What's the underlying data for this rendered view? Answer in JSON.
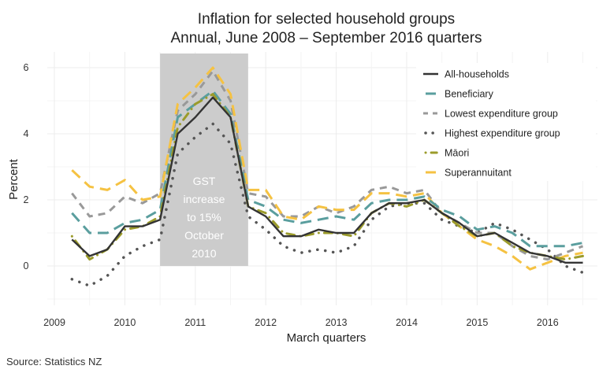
{
  "chart_data": {
    "type": "line",
    "title": "Inflation for selected household groups",
    "subtitle": "Annual, June 2008 – September 2016 quarters",
    "xlabel": "March quarters",
    "ylabel": "Percent",
    "source": "Source: Statistics NZ",
    "xlim": [
      2008.98,
      2016.95
    ],
    "ylim": [
      -1.2,
      6.4
    ],
    "x_ticks": [
      2009,
      2010,
      2011,
      2012,
      2013,
      2014,
      2015,
      2016
    ],
    "x_tick_labels": [
      "2009",
      "2010",
      "2011",
      "2012",
      "2013",
      "2014",
      "2015",
      "2016"
    ],
    "y_ticks": [
      0,
      2,
      4,
      6
    ],
    "y_tick_labels": [
      "0",
      "2",
      "4",
      "6"
    ],
    "grid": true,
    "legend_position": "top-right",
    "annotation": {
      "x_range": [
        2010.5,
        2011.75
      ],
      "lines": [
        "GST",
        "increase",
        "to 15%",
        "October",
        "2010"
      ],
      "color": "#cccccc"
    },
    "x": [
      2009.25,
      2009.5,
      2009.75,
      2010.0,
      2010.25,
      2010.5,
      2010.75,
      2011.0,
      2011.25,
      2011.5,
      2011.75,
      2012.0,
      2012.25,
      2012.5,
      2012.75,
      2013.0,
      2013.25,
      2013.5,
      2013.75,
      2014.0,
      2014.25,
      2014.5,
      2014.75,
      2015.0,
      2015.25,
      2015.5,
      2015.75,
      2016.0,
      2016.25,
      2016.5
    ],
    "series": [
      {
        "name": "All-households",
        "color": "#333333",
        "dash": "solid",
        "values": [
          0.8,
          0.3,
          0.5,
          1.2,
          1.2,
          1.4,
          4.0,
          4.5,
          5.1,
          4.5,
          1.8,
          1.5,
          0.9,
          0.9,
          1.1,
          1.0,
          1.0,
          1.6,
          1.9,
          1.9,
          2.0,
          1.6,
          1.3,
          0.9,
          1.0,
          0.7,
          0.4,
          0.3,
          0.1,
          0.1
        ]
      },
      {
        "name": "Beneficiary",
        "color": "#5a9e9e",
        "dash": "longdash",
        "values": [
          1.6,
          1.0,
          1.0,
          1.3,
          1.4,
          1.7,
          4.5,
          4.9,
          5.3,
          4.6,
          2.0,
          1.8,
          1.4,
          1.3,
          1.4,
          1.5,
          1.4,
          1.9,
          2.0,
          2.0,
          2.1,
          1.7,
          1.5,
          1.1,
          1.2,
          1.0,
          0.6,
          0.6,
          0.6,
          0.7
        ]
      },
      {
        "name": "Lowest expenditure group",
        "color": "#999999",
        "dash": "dash",
        "values": [
          2.2,
          1.5,
          1.6,
          2.1,
          1.9,
          2.2,
          4.7,
          5.2,
          5.9,
          5.0,
          2.2,
          2.1,
          1.5,
          1.5,
          1.8,
          1.6,
          1.8,
          2.3,
          2.4,
          2.2,
          2.3,
          1.6,
          1.3,
          1.0,
          1.0,
          0.6,
          0.3,
          0.2,
          0.4,
          0.6
        ]
      },
      {
        "name": "Highest expenditure group",
        "color": "#555555",
        "dash": "dot",
        "values": [
          -0.4,
          -0.6,
          -0.3,
          0.3,
          0.6,
          0.8,
          3.4,
          3.9,
          4.3,
          3.7,
          1.5,
          1.1,
          0.6,
          0.4,
          0.5,
          0.4,
          0.6,
          1.4,
          1.8,
          1.9,
          1.9,
          1.4,
          1.2,
          1.0,
          1.3,
          1.1,
          0.8,
          0.5,
          0.0,
          -0.2
        ]
      },
      {
        "name": "Māori",
        "color": "#9b9b2a",
        "dash": "dotdash",
        "values": [
          0.9,
          0.2,
          0.5,
          1.1,
          1.2,
          1.5,
          4.2,
          4.9,
          5.2,
          4.5,
          1.8,
          1.6,
          1.0,
          0.9,
          1.0,
          1.0,
          0.9,
          1.6,
          1.9,
          1.8,
          2.0,
          1.6,
          1.2,
          0.9,
          1.0,
          0.6,
          0.4,
          0.3,
          0.2,
          0.3
        ]
      },
      {
        "name": "Superannuitant",
        "color": "#f5c242",
        "dash": "longdash",
        "values": [
          2.9,
          2.4,
          2.3,
          2.6,
          2.0,
          2.1,
          4.9,
          5.4,
          6.0,
          5.2,
          2.3,
          2.3,
          1.5,
          1.4,
          1.8,
          1.7,
          1.7,
          2.2,
          2.2,
          2.1,
          2.2,
          1.6,
          1.2,
          0.8,
          0.6,
          0.3,
          -0.1,
          0.1,
          0.3,
          0.4
        ]
      }
    ]
  }
}
